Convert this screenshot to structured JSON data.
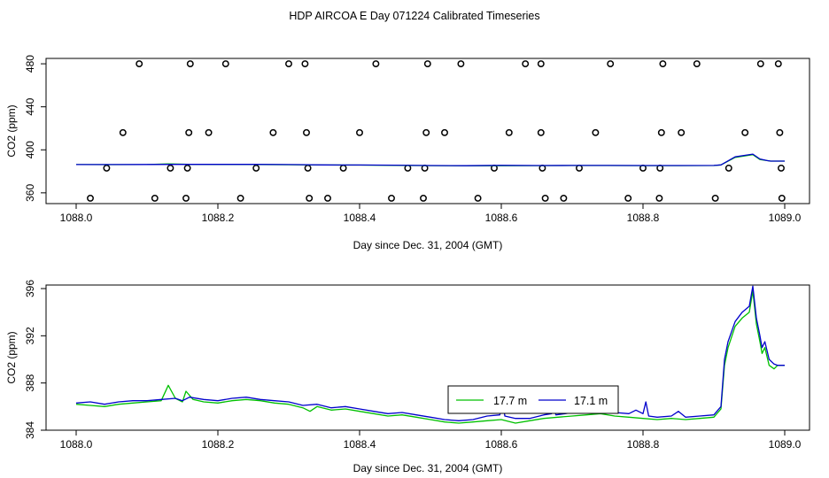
{
  "title": "HDP AIRCOA E  Day 071224  Calibrated Timeseries",
  "colors": {
    "green": "#00c000",
    "blue": "#0000cc",
    "axis": "#000000"
  },
  "chart_data": [
    {
      "type": "line",
      "xlabel": "Day since Dec. 31, 2004 (GMT)",
      "ylabel": "CO2 (ppm)",
      "xlim": [
        1088.0,
        1089.0
      ],
      "ylim": [
        350,
        485
      ],
      "x_ticks": [
        "1088.0",
        "1088.2",
        "1088.4",
        "1088.6",
        "1088.8",
        "1089.0"
      ],
      "y_ticks": [
        "360",
        "400",
        "440",
        "480"
      ],
      "grid": false,
      "series": [
        {
          "style": "circles",
          "color": "#000000",
          "points": [
            [
              1088.089,
              480
            ],
            [
              1088.161,
              480
            ],
            [
              1088.211,
              480
            ],
            [
              1088.3,
              480
            ],
            [
              1088.323,
              480
            ],
            [
              1088.423,
              480
            ],
            [
              1088.496,
              480
            ],
            [
              1088.543,
              480
            ],
            [
              1088.634,
              480
            ],
            [
              1088.656,
              480
            ],
            [
              1088.754,
              480
            ],
            [
              1088.828,
              480
            ],
            [
              1088.876,
              480
            ],
            [
              1088.966,
              480
            ],
            [
              1088.991,
              480
            ],
            [
              1088.066,
              416
            ],
            [
              1088.159,
              416
            ],
            [
              1088.187,
              416
            ],
            [
              1088.278,
              416
            ],
            [
              1088.325,
              416
            ],
            [
              1088.4,
              416
            ],
            [
              1088.494,
              416
            ],
            [
              1088.52,
              416
            ],
            [
              1088.611,
              416
            ],
            [
              1088.656,
              416
            ],
            [
              1088.733,
              416
            ],
            [
              1088.826,
              416
            ],
            [
              1088.854,
              416
            ],
            [
              1088.944,
              416
            ],
            [
              1088.993,
              416
            ],
            [
              1088.043,
              383
            ],
            [
              1088.133,
              383
            ],
            [
              1088.157,
              383
            ],
            [
              1088.254,
              383
            ],
            [
              1088.327,
              383
            ],
            [
              1088.377,
              383
            ],
            [
              1088.468,
              383
            ],
            [
              1088.492,
              383
            ],
            [
              1088.59,
              383
            ],
            [
              1088.658,
              383
            ],
            [
              1088.71,
              383
            ],
            [
              1088.8,
              383
            ],
            [
              1088.824,
              383
            ],
            [
              1088.921,
              383
            ],
            [
              1088.995,
              383
            ],
            [
              1088.02,
              355
            ],
            [
              1088.111,
              355
            ],
            [
              1088.155,
              355
            ],
            [
              1088.232,
              355
            ],
            [
              1088.329,
              355
            ],
            [
              1088.355,
              355
            ],
            [
              1088.445,
              355
            ],
            [
              1088.49,
              355
            ],
            [
              1088.567,
              355
            ],
            [
              1088.662,
              355
            ],
            [
              1088.688,
              355
            ],
            [
              1088.779,
              355
            ],
            [
              1088.823,
              355
            ],
            [
              1088.902,
              355
            ],
            [
              1088.996,
              355
            ]
          ]
        },
        {
          "name": "17.7 m",
          "color": "#00c000",
          "points": [
            [
              1088.0,
              386.3
            ],
            [
              1088.05,
              386.2
            ],
            [
              1088.1,
              386.3
            ],
            [
              1088.13,
              387.0
            ],
            [
              1088.16,
              386.5
            ],
            [
              1088.2,
              386.3
            ],
            [
              1088.25,
              386.4
            ],
            [
              1088.3,
              386.1
            ],
            [
              1088.35,
              385.9
            ],
            [
              1088.4,
              385.8
            ],
            [
              1088.45,
              385.6
            ],
            [
              1088.5,
              385.3
            ],
            [
              1088.55,
              385.1
            ],
            [
              1088.6,
              385.2
            ],
            [
              1088.65,
              385.3
            ],
            [
              1088.7,
              385.4
            ],
            [
              1088.75,
              385.4
            ],
            [
              1088.8,
              385.3
            ],
            [
              1088.85,
              385.3
            ],
            [
              1088.9,
              385.4
            ],
            [
              1088.91,
              386.0
            ],
            [
              1088.93,
              393.0
            ],
            [
              1088.955,
              395.5
            ],
            [
              1088.965,
              391.0
            ],
            [
              1088.975,
              390.0
            ],
            [
              1088.98,
              389.5
            ],
            [
              1089.0,
              389.5
            ]
          ]
        },
        {
          "name": "17.1 m",
          "color": "#0000cc",
          "points": [
            [
              1088.0,
              386.3
            ],
            [
              1088.05,
              386.3
            ],
            [
              1088.1,
              386.4
            ],
            [
              1088.15,
              386.5
            ],
            [
              1088.2,
              386.5
            ],
            [
              1088.25,
              386.5
            ],
            [
              1088.3,
              386.3
            ],
            [
              1088.35,
              386.0
            ],
            [
              1088.4,
              385.9
            ],
            [
              1088.45,
              385.7
            ],
            [
              1088.5,
              385.4
            ],
            [
              1088.55,
              385.2
            ],
            [
              1088.6,
              385.6
            ],
            [
              1088.65,
              385.4
            ],
            [
              1088.7,
              385.5
            ],
            [
              1088.75,
              385.5
            ],
            [
              1088.8,
              385.4
            ],
            [
              1088.85,
              385.4
            ],
            [
              1088.9,
              385.5
            ],
            [
              1088.91,
              386.0
            ],
            [
              1088.93,
              393.5
            ],
            [
              1088.955,
              396.0
            ],
            [
              1088.965,
              391.5
            ],
            [
              1088.975,
              390.0
            ],
            [
              1088.98,
              389.5
            ],
            [
              1089.0,
              389.5
            ]
          ]
        }
      ]
    },
    {
      "type": "line",
      "xlabel": "Day since Dec. 31, 2004 (GMT)",
      "ylabel": "CO2 (ppm)",
      "xlim": [
        1088.0,
        1089.0
      ],
      "ylim": [
        384,
        396.3
      ],
      "x_ticks": [
        "1088.0",
        "1088.2",
        "1088.4",
        "1088.6",
        "1088.8",
        "1089.0"
      ],
      "y_ticks": [
        "384",
        "388",
        "392",
        "396"
      ],
      "grid": false,
      "legend": "center-right",
      "series": [
        {
          "name": "17.7 m",
          "color": "#00c000",
          "points": [
            [
              1088.0,
              386.2
            ],
            [
              1088.02,
              386.1
            ],
            [
              1088.04,
              386.0
            ],
            [
              1088.06,
              386.2
            ],
            [
              1088.08,
              386.3
            ],
            [
              1088.1,
              386.4
            ],
            [
              1088.12,
              386.5
            ],
            [
              1088.13,
              387.8
            ],
            [
              1088.14,
              386.7
            ],
            [
              1088.15,
              386.4
            ],
            [
              1088.155,
              387.3
            ],
            [
              1088.165,
              386.6
            ],
            [
              1088.18,
              386.4
            ],
            [
              1088.2,
              386.3
            ],
            [
              1088.22,
              386.5
            ],
            [
              1088.24,
              386.6
            ],
            [
              1088.26,
              386.5
            ],
            [
              1088.28,
              386.3
            ],
            [
              1088.3,
              386.2
            ],
            [
              1088.32,
              385.9
            ],
            [
              1088.33,
              385.6
            ],
            [
              1088.34,
              386.0
            ],
            [
              1088.36,
              385.7
            ],
            [
              1088.38,
              385.8
            ],
            [
              1088.4,
              385.6
            ],
            [
              1088.42,
              385.4
            ],
            [
              1088.44,
              385.2
            ],
            [
              1088.46,
              385.3
            ],
            [
              1088.48,
              385.1
            ],
            [
              1088.5,
              384.9
            ],
            [
              1088.52,
              384.7
            ],
            [
              1088.54,
              384.6
            ],
            [
              1088.56,
              384.7
            ],
            [
              1088.58,
              384.8
            ],
            [
              1088.6,
              384.9
            ],
            [
              1088.62,
              384.6
            ],
            [
              1088.64,
              384.8
            ],
            [
              1088.66,
              385.0
            ],
            [
              1088.68,
              385.1
            ],
            [
              1088.7,
              385.2
            ],
            [
              1088.72,
              385.3
            ],
            [
              1088.74,
              385.4
            ],
            [
              1088.76,
              385.2
            ],
            [
              1088.78,
              385.1
            ],
            [
              1088.8,
              385.0
            ],
            [
              1088.82,
              384.9
            ],
            [
              1088.84,
              385.0
            ],
            [
              1088.86,
              384.9
            ],
            [
              1088.88,
              385.0
            ],
            [
              1088.9,
              385.1
            ],
            [
              1088.91,
              385.8
            ],
            [
              1088.915,
              389.5
            ],
            [
              1088.92,
              391.0
            ],
            [
              1088.93,
              392.8
            ],
            [
              1088.94,
              393.5
            ],
            [
              1088.95,
              394.0
            ],
            [
              1088.955,
              395.8
            ],
            [
              1088.96,
              393.0
            ],
            [
              1088.965,
              391.5
            ],
            [
              1088.968,
              390.5
            ],
            [
              1088.972,
              391.0
            ],
            [
              1088.978,
              389.5
            ],
            [
              1088.985,
              389.2
            ],
            [
              1088.99,
              389.5
            ],
            [
              1089.0,
              389.5
            ]
          ]
        },
        {
          "name": "17.1 m",
          "color": "#0000cc",
          "points": [
            [
              1088.0,
              386.3
            ],
            [
              1088.02,
              386.4
            ],
            [
              1088.04,
              386.2
            ],
            [
              1088.06,
              386.4
            ],
            [
              1088.08,
              386.5
            ],
            [
              1088.1,
              386.5
            ],
            [
              1088.12,
              386.6
            ],
            [
              1088.14,
              386.7
            ],
            [
              1088.15,
              386.5
            ],
            [
              1088.16,
              386.8
            ],
            [
              1088.18,
              386.6
            ],
            [
              1088.2,
              386.5
            ],
            [
              1088.22,
              386.7
            ],
            [
              1088.24,
              386.8
            ],
            [
              1088.26,
              386.6
            ],
            [
              1088.28,
              386.5
            ],
            [
              1088.3,
              386.4
            ],
            [
              1088.32,
              386.1
            ],
            [
              1088.34,
              386.2
            ],
            [
              1088.36,
              385.9
            ],
            [
              1088.38,
              386.0
            ],
            [
              1088.4,
              385.8
            ],
            [
              1088.42,
              385.6
            ],
            [
              1088.44,
              385.4
            ],
            [
              1088.46,
              385.5
            ],
            [
              1088.48,
              385.3
            ],
            [
              1088.5,
              385.1
            ],
            [
              1088.52,
              384.9
            ],
            [
              1088.54,
              384.8
            ],
            [
              1088.56,
              384.9
            ],
            [
              1088.58,
              385.2
            ],
            [
              1088.598,
              385.3
            ],
            [
              1088.601,
              386.8
            ],
            [
              1088.605,
              385.2
            ],
            [
              1088.62,
              385.0
            ],
            [
              1088.64,
              385.0
            ],
            [
              1088.66,
              385.3
            ],
            [
              1088.671,
              385.4
            ],
            [
              1088.673,
              386.5
            ],
            [
              1088.677,
              385.3
            ],
            [
              1088.69,
              385.4
            ],
            [
              1088.7,
              385.5
            ],
            [
              1088.72,
              385.6
            ],
            [
              1088.73,
              385.8
            ],
            [
              1088.732,
              386.5
            ],
            [
              1088.736,
              385.6
            ],
            [
              1088.76,
              385.5
            ],
            [
              1088.78,
              385.4
            ],
            [
              1088.79,
              385.7
            ],
            [
              1088.8,
              385.4
            ],
            [
              1088.804,
              386.4
            ],
            [
              1088.808,
              385.2
            ],
            [
              1088.82,
              385.1
            ],
            [
              1088.84,
              385.2
            ],
            [
              1088.85,
              385.6
            ],
            [
              1088.86,
              385.1
            ],
            [
              1088.88,
              385.2
            ],
            [
              1088.9,
              385.3
            ],
            [
              1088.91,
              386.0
            ],
            [
              1088.915,
              390.0
            ],
            [
              1088.92,
              391.5
            ],
            [
              1088.93,
              393.2
            ],
            [
              1088.94,
              394.0
            ],
            [
              1088.95,
              394.5
            ],
            [
              1088.955,
              396.2
            ],
            [
              1088.96,
              393.5
            ],
            [
              1088.965,
              392.0
            ],
            [
              1088.968,
              391.0
            ],
            [
              1088.972,
              391.5
            ],
            [
              1088.978,
              390.0
            ],
            [
              1088.985,
              389.6
            ],
            [
              1088.99,
              389.5
            ],
            [
              1089.0,
              389.5
            ]
          ]
        }
      ]
    }
  ]
}
